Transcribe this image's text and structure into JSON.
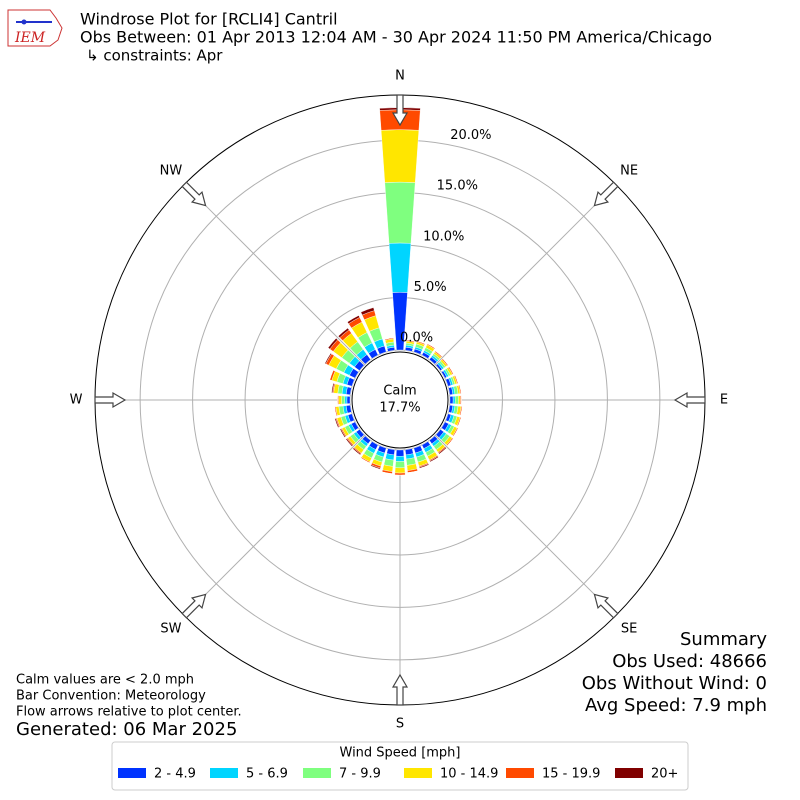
{
  "logo_text": "IEM",
  "chart_data": {
    "type": "windrose",
    "title": "Windrose Plot for [RCLI4] Cantril",
    "subtitle": "Obs Between: 01 Apr 2013 12:04 AM - 30 Apr 2024 11:50 PM America/Chicago",
    "constraints": "↳ constraints: Apr",
    "x": [
      0,
      10,
      20,
      30,
      40,
      50,
      60,
      70,
      80,
      90,
      100,
      110,
      120,
      130,
      140,
      150,
      160,
      170,
      180,
      190,
      200,
      210,
      220,
      230,
      240,
      250,
      260,
      270,
      280,
      290,
      300,
      310,
      320,
      330,
      340,
      350
    ],
    "direction_labels": [
      {
        "value": 0,
        "label": "N"
      },
      {
        "value": 45,
        "label": "NE"
      },
      {
        "value": 90,
        "label": "E"
      },
      {
        "value": 135,
        "label": "SE"
      },
      {
        "value": 180,
        "label": "S"
      },
      {
        "value": 225,
        "label": "SW"
      },
      {
        "value": 270,
        "label": "W"
      },
      {
        "value": 315,
        "label": "NW"
      }
    ],
    "ylim": [
      0,
      24.3
    ],
    "yticks": [
      {
        "value": 0,
        "label": "0.0%"
      },
      {
        "value": 5,
        "label": "5.0%"
      },
      {
        "value": 10,
        "label": "10.0%"
      },
      {
        "value": 15,
        "label": "15.0%"
      },
      {
        "value": 20,
        "label": "20.0%"
      }
    ],
    "grid": true,
    "calm": {
      "label": "Calm",
      "value": 17.7,
      "value_label": "17.7%"
    },
    "legend_title": "Wind Speed [mph]",
    "series": [
      {
        "name": "2 - 4.9",
        "color": "#0033ff",
        "values": [
          5.5,
          0.3,
          0.3,
          0.3,
          0.3,
          0.2,
          0.2,
          0.3,
          0.3,
          0.3,
          0.3,
          0.3,
          0.4,
          0.4,
          0.4,
          0.4,
          0.5,
          0.5,
          0.6,
          0.5,
          0.5,
          0.5,
          0.4,
          0.4,
          0.4,
          0.4,
          0.4,
          0.3,
          0.4,
          0.5,
          0.6,
          0.6,
          0.6,
          0.6,
          0.6,
          0.3
        ]
      },
      {
        "name": "5 - 6.9",
        "color": "#00d5ff",
        "values": [
          4.7,
          0.2,
          0.2,
          0.2,
          0.2,
          0.2,
          0.2,
          0.2,
          0.2,
          0.2,
          0.2,
          0.3,
          0.3,
          0.3,
          0.3,
          0.4,
          0.4,
          0.4,
          0.5,
          0.5,
          0.4,
          0.4,
          0.3,
          0.3,
          0.3,
          0.3,
          0.3,
          0.2,
          0.4,
          0.4,
          0.6,
          0.6,
          0.6,
          0.7,
          0.7,
          0.2
        ]
      },
      {
        "name": "7 - 9.9",
        "color": "#7fff7f",
        "values": [
          5.8,
          0.2,
          0.3,
          0.3,
          0.2,
          0.2,
          0.2,
          0.2,
          0.3,
          0.3,
          0.3,
          0.3,
          0.3,
          0.4,
          0.4,
          0.4,
          0.5,
          0.6,
          0.6,
          0.6,
          0.5,
          0.5,
          0.4,
          0.4,
          0.4,
          0.4,
          0.4,
          0.3,
          0.4,
          0.6,
          0.8,
          0.9,
          0.9,
          1.1,
          1.1,
          0.3
        ]
      },
      {
        "name": "10 - 14.9",
        "color": "#ffe600",
        "values": [
          5.0,
          0.2,
          0.2,
          0.3,
          0.2,
          0.2,
          0.2,
          0.2,
          0.2,
          0.2,
          0.3,
          0.3,
          0.3,
          0.3,
          0.3,
          0.4,
          0.4,
          0.5,
          0.5,
          0.5,
          0.4,
          0.4,
          0.4,
          0.3,
          0.3,
          0.4,
          0.3,
          0.3,
          0.4,
          0.5,
          0.8,
          1.0,
          1.0,
          1.1,
          1.2,
          0.3
        ]
      },
      {
        "name": "15 - 19.9",
        "color": "#ff4a00",
        "values": [
          1.9,
          0.1,
          0.1,
          0.1,
          0.1,
          0.1,
          0.1,
          0.1,
          0.1,
          0.1,
          0.1,
          0.1,
          0.1,
          0.1,
          0.1,
          0.1,
          0.1,
          0.2,
          0.2,
          0.2,
          0.2,
          0.1,
          0.1,
          0.1,
          0.1,
          0.1,
          0.1,
          0.1,
          0.1,
          0.2,
          0.3,
          0.4,
          0.4,
          0.5,
          0.5,
          0.1
        ]
      },
      {
        "name": "20+",
        "color": "#800000",
        "values": [
          0.2,
          0,
          0,
          0,
          0,
          0,
          0,
          0,
          0,
          0,
          0,
          0,
          0,
          0,
          0.1,
          0.1,
          0.1,
          0,
          0,
          0,
          0.1,
          0,
          0.1,
          0.1,
          0.1,
          0.1,
          0,
          0,
          0.1,
          0,
          0.1,
          0.2,
          0.2,
          0.2,
          0.3,
          0
        ]
      }
    ],
    "summary": [
      "Summary",
      "Obs Used: 48666",
      "Obs Without Wind: 0",
      "Avg Speed: 7.9 mph"
    ],
    "notes": [
      "Calm values are < 2.0 mph",
      "Bar Convention: Meteorology",
      "Flow arrows relative to plot center."
    ],
    "generated": "Generated: 06 Mar 2025"
  }
}
